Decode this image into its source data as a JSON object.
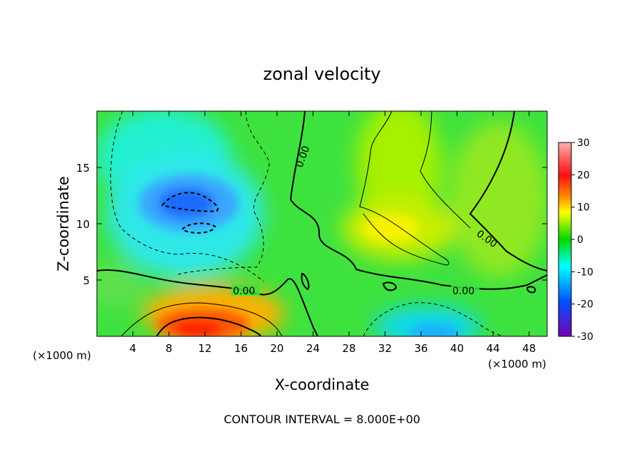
{
  "chart_data": {
    "type": "heatmap",
    "title": "zonal velocity",
    "xlabel": "X-coordinate",
    "ylabel": "Z-coordinate",
    "x_unit_label": "(×1000 m)",
    "z_unit_label": "(×1000 m)",
    "xlim": [
      0,
      50
    ],
    "ylim": [
      0,
      20
    ],
    "x_ticks": [
      4,
      8,
      12,
      16,
      20,
      24,
      28,
      32,
      36,
      40,
      44,
      48
    ],
    "y_ticks": [
      5,
      10,
      15
    ],
    "colorbar": {
      "ticks": [
        30,
        20,
        10,
        0,
        -10,
        -20,
        -30
      ],
      "range": [
        -30,
        30
      ],
      "colors": [
        "#ff9a9a",
        "#ff1a1a",
        "#ff8c00",
        "#ffff00",
        "#00d000",
        "#00ffff",
        "#0050ff",
        "#5a00c8"
      ]
    },
    "contour_labels": [
      "0.00",
      "0.00",
      "0.00",
      "0.00"
    ],
    "contour_interval_text": "CONTOUR INTERVAL = 8.000E+00",
    "features": [
      {
        "kind": "minimum",
        "x": 11,
        "y": 12,
        "value": -18
      },
      {
        "kind": "minimum",
        "x": 10,
        "y": 9.5,
        "value": -16
      },
      {
        "kind": "maximum",
        "x": 12,
        "y": 1,
        "value": 22
      },
      {
        "kind": "maximum",
        "x": 33,
        "y": 10,
        "value": 10
      },
      {
        "kind": "minimum",
        "x": 38,
        "y": 1,
        "value": -12
      }
    ]
  }
}
